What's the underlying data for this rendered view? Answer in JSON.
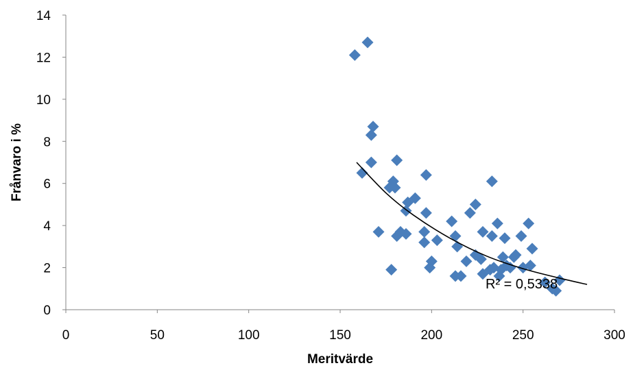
{
  "chart_data": {
    "type": "scatter",
    "title": "",
    "xlabel": "Meritvärde",
    "ylabel": "Frånvaro i %",
    "xlim": [
      0,
      300
    ],
    "ylim": [
      0,
      14
    ],
    "xticks": [
      0,
      50,
      100,
      150,
      200,
      250,
      300
    ],
    "yticks": [
      0,
      2,
      4,
      6,
      8,
      10,
      12,
      14
    ],
    "grid": false,
    "legend": "none",
    "marker": "diamond",
    "marker_color": "#4a7ebb",
    "trendline": {
      "type": "exponential",
      "color": "#000000",
      "x_range": [
        159,
        285
      ],
      "label": "R² = 0,5338",
      "points": [
        [
          159,
          7.0
        ],
        [
          175,
          5.55
        ],
        [
          190,
          4.5
        ],
        [
          210,
          3.4
        ],
        [
          230,
          2.55
        ],
        [
          250,
          1.95
        ],
        [
          270,
          1.5
        ],
        [
          285,
          1.2
        ]
      ]
    },
    "points": [
      [
        158,
        12.1
      ],
      [
        165,
        12.7
      ],
      [
        168,
        8.7
      ],
      [
        167,
        8.3
      ],
      [
        167,
        7.0
      ],
      [
        181,
        7.1
      ],
      [
        162,
        6.5
      ],
      [
        179,
        6.1
      ],
      [
        177,
        5.8
      ],
      [
        180,
        5.8
      ],
      [
        197,
        6.4
      ],
      [
        187,
        5.1
      ],
      [
        191,
        5.3
      ],
      [
        186,
        4.7
      ],
      [
        197,
        4.6
      ],
      [
        171,
        3.7
      ],
      [
        178,
        1.9
      ],
      [
        181,
        3.5
      ],
      [
        183,
        3.7
      ],
      [
        186,
        3.6
      ],
      [
        196,
        3.7
      ],
      [
        196,
        3.2
      ],
      [
        200,
        2.3
      ],
      [
        199,
        2.0
      ],
      [
        203,
        3.3
      ],
      [
        211,
        4.2
      ],
      [
        213,
        3.5
      ],
      [
        214,
        3.0
      ],
      [
        213,
        1.6
      ],
      [
        216,
        1.6
      ],
      [
        219,
        2.3
      ],
      [
        221,
        4.6
      ],
      [
        224,
        5.0
      ],
      [
        224,
        2.6
      ],
      [
        227,
        2.4
      ],
      [
        228,
        3.7
      ],
      [
        228,
        1.7
      ],
      [
        232,
        1.9
      ],
      [
        233,
        3.5
      ],
      [
        233,
        6.1
      ],
      [
        234,
        2.0
      ],
      [
        236,
        4.1
      ],
      [
        237,
        1.6
      ],
      [
        238,
        1.9
      ],
      [
        239,
        2.5
      ],
      [
        240,
        3.4
      ],
      [
        241,
        2.1
      ],
      [
        243,
        2.0
      ],
      [
        245,
        2.5
      ],
      [
        246,
        2.6
      ],
      [
        249,
        3.5
      ],
      [
        250,
        2.0
      ],
      [
        253,
        4.1
      ],
      [
        254,
        2.1
      ],
      [
        255,
        2.9
      ],
      [
        262,
        1.3
      ],
      [
        266,
        1.0
      ],
      [
        268,
        0.9
      ],
      [
        270,
        1.4
      ]
    ]
  }
}
